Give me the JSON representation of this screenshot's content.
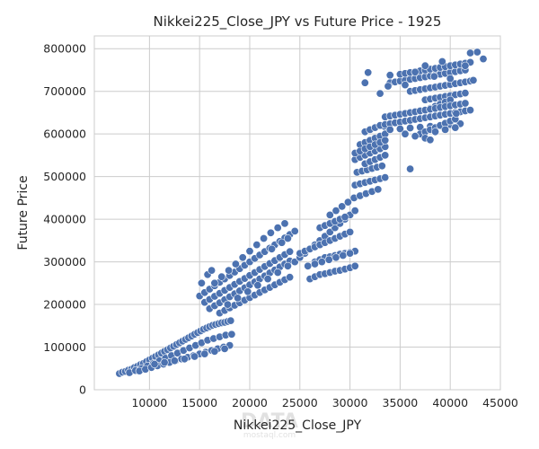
{
  "chart_data": {
    "type": "scatter",
    "title": "Nikkei225_Close_JPY vs Future Price - 1925",
    "xlabel": "Nikkei225_Close_JPY",
    "ylabel": "Future Price",
    "xlim": [
      4500,
      45000
    ],
    "ylim": [
      0,
      830000
    ],
    "xticks": [
      10000,
      15000,
      20000,
      25000,
      30000,
      35000,
      40000,
      45000
    ],
    "yticks": [
      0,
      100000,
      200000,
      300000,
      400000,
      500000,
      600000,
      700000,
      800000
    ],
    "grid": true,
    "point_color": "#4c72b0",
    "watermark": {
      "main": "DATA",
      "sub": "mostaql.com"
    },
    "x": [
      7000,
      7300,
      7600,
      7900,
      8200,
      8500,
      8800,
      9100,
      9400,
      9700,
      10000,
      10300,
      10600,
      10900,
      11200,
      11500,
      11800,
      12100,
      12400,
      12700,
      13000,
      13300,
      13600,
      13900,
      14200,
      14500,
      14800,
      15100,
      15400,
      15700,
      16000,
      16300,
      16600,
      16900,
      17200,
      17500,
      17800,
      18100,
      8000,
      8600,
      9200,
      9800,
      10400,
      11000,
      11600,
      12200,
      12800,
      13400,
      14000,
      14600,
      15200,
      15800,
      16400,
      17000,
      17600,
      18200,
      9000,
      9600,
      10200,
      10800,
      11400,
      12000,
      12600,
      13200,
      13800,
      14400,
      15000,
      15600,
      16200,
      16800,
      17400,
      18000,
      10500,
      11500,
      12500,
      13500,
      14500,
      15500,
      16500,
      17500,
      15000,
      15500,
      16000,
      16500,
      17000,
      17500,
      18000,
      18500,
      19000,
      19500,
      20000,
      20500,
      21000,
      21500,
      22000,
      22500,
      23000,
      23500,
      24000,
      24500,
      15500,
      16000,
      16500,
      17000,
      17500,
      18000,
      18500,
      19000,
      19500,
      20000,
      20500,
      21000,
      21500,
      22000,
      22500,
      23000,
      23500,
      24000,
      16000,
      16500,
      17000,
      17500,
      18000,
      18500,
      19000,
      19500,
      20000,
      20500,
      21000,
      21500,
      22000,
      22500,
      23000,
      23500,
      24000,
      17000,
      17500,
      18000,
      18500,
      19000,
      19500,
      20000,
      20500,
      21000,
      21500,
      22000,
      22500,
      23000,
      23500,
      24000,
      16500,
      17200,
      17900,
      18600,
      19300,
      20000,
      20700,
      21400,
      22100,
      22800,
      23500,
      17800,
      18800,
      19800,
      20800,
      21800,
      22800,
      23800,
      15200,
      15800,
      16200,
      22200,
      23200,
      23800,
      24500,
      25000,
      25500,
      26000,
      26500,
      27000,
      27500,
      28000,
      28500,
      29000,
      29500,
      30000,
      30500,
      26000,
      26500,
      27000,
      27500,
      28000,
      28500,
      29000,
      29500,
      30000,
      30500,
      26500,
      27000,
      27500,
      28000,
      28500,
      29000,
      29500,
      30000,
      30500,
      25000,
      25500,
      26000,
      26500,
      27000,
      27500,
      28000,
      28500,
      29000,
      29500,
      30000,
      27000,
      27500,
      28000,
      28500,
      29000,
      29500,
      25800,
      26500,
      27200,
      27900,
      28600,
      29300,
      30000,
      28000,
      28600,
      29200,
      29800,
      30400,
      31000,
      31600,
      32200,
      32800,
      30500,
      31000,
      31500,
      32000,
      32500,
      33000,
      33500,
      30700,
      31200,
      31700,
      32200,
      32700,
      33200,
      30500,
      31000,
      31500,
      32000,
      32500,
      33000,
      33500,
      31000,
      31500,
      32000,
      32500,
      33000,
      33500,
      31500,
      32000,
      32500,
      33000,
      33400,
      31500,
      32000,
      32500,
      33000,
      33500,
      30500,
      31000,
      31500,
      32000,
      32500,
      33000,
      33500,
      36000,
      34000,
      34500,
      35000,
      35500,
      36000,
      36500,
      37000,
      37500,
      38000,
      38500,
      39000,
      39500,
      40000,
      40500,
      41000,
      41500,
      35000,
      35500,
      36000,
      36500,
      37000,
      37500,
      38000,
      38500,
      39000,
      39500,
      40000,
      40500,
      41000,
      41500,
      42000,
      36000,
      36500,
      37000,
      37500,
      38000,
      38500,
      39000,
      39500,
      40000,
      40500,
      41000,
      41500,
      42000,
      42300,
      37500,
      38000,
      38500,
      39000,
      39500,
      40000,
      40500,
      41000,
      41500,
      33000,
      33500,
      34000,
      34500,
      35000,
      35500,
      36000,
      36500,
      37000,
      37500,
      38000,
      38500,
      39000,
      39500,
      40000,
      40500,
      41000,
      41500,
      42000,
      34000,
      35000,
      36000,
      37000,
      38000,
      39000,
      40000,
      41000,
      37000,
      37500,
      38000,
      38500,
      39000,
      39500,
      40000,
      40500,
      38000,
      38500,
      39000,
      39500,
      40000,
      33500,
      34000,
      34500,
      35000,
      35500,
      36000,
      36500,
      37000,
      37500,
      38000,
      38500,
      39000,
      39500,
      40000,
      40500,
      41000,
      41500,
      35500,
      36500,
      37500,
      38500,
      39500,
      40500,
      31500,
      31800,
      33000,
      34000,
      42000,
      42700,
      43300,
      38000,
      37500,
      39200,
      40000,
      41500,
      36500,
      35500,
      33800,
      38400,
      40600
    ],
    "y": [
      38000,
      41000,
      43000,
      46000,
      48000,
      52000,
      55000,
      59000,
      62000,
      66000,
      70000,
      74000,
      78000,
      82000,
      86000,
      90000,
      94000,
      98000,
      102000,
      106000,
      110000,
      114000,
      118000,
      122000,
      126000,
      130000,
      134000,
      138000,
      142000,
      145000,
      148000,
      151000,
      153000,
      155000,
      157000,
      158000,
      160000,
      162000,
      40000,
      45000,
      50000,
      56000,
      62000,
      68000,
      74000,
      80000,
      86000,
      92000,
      98000,
      104000,
      110000,
      116000,
      120000,
      124000,
      128000,
      130000,
      44000,
      48000,
      52000,
      56000,
      60000,
      64000,
      68000,
      72000,
      76000,
      80000,
      84000,
      88000,
      92000,
      96000,
      100000,
      104000,
      60000,
      64000,
      68000,
      72000,
      78000,
      84000,
      90000,
      96000,
      220000,
      228000,
      236000,
      244000,
      252000,
      260000,
      268000,
      276000,
      284000,
      292000,
      300000,
      308000,
      316000,
      324000,
      332000,
      340000,
      348000,
      356000,
      364000,
      372000,
      205000,
      212000,
      219000,
      226000,
      233000,
      240000,
      247000,
      254000,
      261000,
      268000,
      275000,
      282000,
      289000,
      296000,
      303000,
      310000,
      317000,
      324000,
      190000,
      197000,
      204000,
      211000,
      218000,
      225000,
      232000,
      239000,
      246000,
      253000,
      260000,
      267000,
      274000,
      281000,
      288000,
      295000,
      302000,
      180000,
      186000,
      192000,
      198000,
      204000,
      210000,
      216000,
      222000,
      228000,
      234000,
      240000,
      246000,
      252000,
      258000,
      264000,
      250000,
      265000,
      280000,
      295000,
      310000,
      325000,
      340000,
      355000,
      368000,
      380000,
      390000,
      200000,
      215000,
      230000,
      245000,
      260000,
      275000,
      290000,
      250000,
      270000,
      280000,
      330000,
      345000,
      355000,
      300000,
      310000,
      320000,
      330000,
      340000,
      350000,
      360000,
      370000,
      380000,
      390000,
      400000,
      410000,
      420000,
      260000,
      265000,
      270000,
      272000,
      275000,
      278000,
      280000,
      283000,
      286000,
      290000,
      300000,
      305000,
      310000,
      312000,
      315000,
      318000,
      320000,
      322000,
      325000,
      320000,
      325000,
      330000,
      335000,
      340000,
      345000,
      350000,
      355000,
      360000,
      365000,
      370000,
      380000,
      385000,
      390000,
      395000,
      400000,
      405000,
      290000,
      295000,
      300000,
      305000,
      310000,
      315000,
      320000,
      410000,
      420000,
      430000,
      440000,
      450000,
      455000,
      460000,
      465000,
      470000,
      480000,
      483000,
      486000,
      489000,
      492000,
      495000,
      498000,
      510000,
      513000,
      516000,
      519000,
      522000,
      525000,
      540000,
      545000,
      550000,
      555000,
      560000,
      565000,
      570000,
      575000,
      580000,
      585000,
      590000,
      595000,
      600000,
      605000,
      610000,
      615000,
      620000,
      618000,
      530000,
      535000,
      540000,
      545000,
      550000,
      555000,
      560000,
      565000,
      570000,
      575000,
      580000,
      585000,
      518000,
      720000,
      722000,
      724000,
      726000,
      728000,
      730000,
      732000,
      734000,
      736000,
      738000,
      740000,
      742000,
      744000,
      746000,
      748000,
      750000,
      740000,
      742000,
      744000,
      746000,
      748000,
      750000,
      752000,
      754000,
      756000,
      758000,
      760000,
      762000,
      764000,
      766000,
      768000,
      700000,
      702000,
      704000,
      706000,
      708000,
      710000,
      712000,
      714000,
      716000,
      718000,
      720000,
      722000,
      724000,
      726000,
      680000,
      682000,
      684000,
      686000,
      688000,
      690000,
      692000,
      694000,
      696000,
      620000,
      622000,
      624000,
      626000,
      628000,
      630000,
      632000,
      634000,
      636000,
      638000,
      640000,
      642000,
      644000,
      646000,
      648000,
      650000,
      652000,
      654000,
      656000,
      610000,
      612000,
      614000,
      616000,
      618000,
      620000,
      622000,
      624000,
      600000,
      605000,
      610000,
      615000,
      620000,
      625000,
      630000,
      635000,
      660000,
      665000,
      670000,
      675000,
      680000,
      640000,
      642000,
      644000,
      646000,
      648000,
      650000,
      652000,
      654000,
      656000,
      658000,
      660000,
      662000,
      664000,
      666000,
      668000,
      670000,
      672000,
      600000,
      595000,
      590000,
      605000,
      610000,
      615000,
      720000,
      744000,
      695000,
      738000,
      790000,
      792000,
      776000,
      586000,
      760000,
      770000,
      730000,
      760000,
      745000,
      715000,
      712000,
      735000,
      648000
    ]
  }
}
